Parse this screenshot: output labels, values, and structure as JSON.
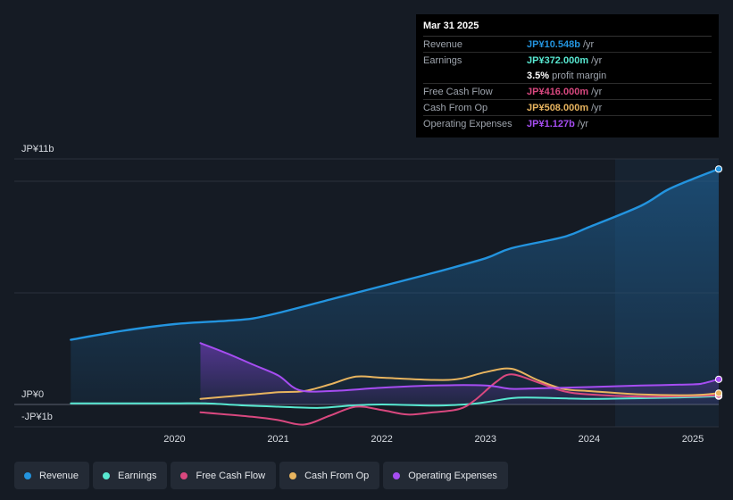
{
  "chart_data": {
    "type": "area",
    "title": "",
    "y_labels": {
      "top": "JP¥11b",
      "zero": "JP¥0",
      "bottom": "-JP¥1b"
    },
    "ylim": [
      -1.0,
      11.0
    ],
    "x_ticks": [
      "2020",
      "2021",
      "2022",
      "2023",
      "2024",
      "2025"
    ],
    "x_tick_values": [
      2020.0,
      2021.0,
      2022.0,
      2023.0,
      2024.0,
      2025.0
    ],
    "xlim": [
      2018.73,
      2025.25
    ],
    "forecast_start": 2024.25,
    "series": [
      {
        "name": "Revenue",
        "color": "#2394df",
        "fill": true,
        "x": [
          2019.0,
          2019.5,
          2020.0,
          2020.5,
          2020.75,
          2021.0,
          2021.5,
          2022.0,
          2022.5,
          2023.0,
          2023.25,
          2023.75,
          2024.0,
          2024.5,
          2024.75,
          2025.0,
          2025.25
        ],
        "values": [
          2.9,
          3.3,
          3.6,
          3.75,
          3.85,
          4.1,
          4.7,
          5.3,
          5.9,
          6.55,
          7.0,
          7.5,
          7.95,
          8.9,
          9.6,
          10.1,
          10.548
        ]
      },
      {
        "name": "Earnings",
        "color": "#58e8d1",
        "fill": false,
        "x": [
          2019.0,
          2019.5,
          2020.0,
          2020.3,
          2020.7,
          2021.0,
          2021.4,
          2021.7,
          2022.0,
          2022.5,
          2022.8,
          2023.0,
          2023.3,
          2023.7,
          2024.0,
          2024.5,
          2025.0,
          2025.25
        ],
        "values": [
          0.05,
          0.05,
          0.05,
          0.05,
          -0.05,
          -0.1,
          -0.15,
          -0.05,
          0.0,
          -0.05,
          0.0,
          0.1,
          0.3,
          0.28,
          0.25,
          0.28,
          0.33,
          0.372
        ]
      },
      {
        "name": "Free Cash Flow",
        "color": "#d9487f",
        "fill": false,
        "x": [
          2020.25,
          2020.75,
          2021.0,
          2021.25,
          2021.5,
          2021.75,
          2022.0,
          2022.25,
          2022.5,
          2022.75,
          2022.9,
          2023.1,
          2023.25,
          2023.5,
          2023.75,
          2024.0,
          2024.5,
          2025.0,
          2025.25
        ],
        "values": [
          -0.35,
          -0.55,
          -0.7,
          -0.9,
          -0.5,
          -0.1,
          -0.25,
          -0.45,
          -0.35,
          -0.2,
          0.2,
          1.0,
          1.35,
          1.0,
          0.6,
          0.45,
          0.35,
          0.38,
          0.416
        ]
      },
      {
        "name": "Cash From Op",
        "color": "#e8b45f",
        "fill": false,
        "x": [
          2020.25,
          2020.75,
          2021.0,
          2021.25,
          2021.5,
          2021.75,
          2022.0,
          2022.5,
          2022.75,
          2023.0,
          2023.25,
          2023.5,
          2023.75,
          2024.0,
          2024.5,
          2025.0,
          2025.25
        ],
        "values": [
          0.25,
          0.45,
          0.55,
          0.6,
          0.9,
          1.25,
          1.2,
          1.1,
          1.15,
          1.45,
          1.6,
          1.1,
          0.7,
          0.6,
          0.45,
          0.42,
          0.508
        ]
      },
      {
        "name": "Operating Expenses",
        "color": "#a64df2",
        "fill": true,
        "x": [
          2020.25,
          2020.5,
          2020.75,
          2021.0,
          2021.2,
          2021.5,
          2022.0,
          2022.5,
          2023.0,
          2023.25,
          2023.5,
          2024.0,
          2024.5,
          2025.0,
          2025.1,
          2025.25
        ],
        "values": [
          2.75,
          2.3,
          1.8,
          1.3,
          0.65,
          0.6,
          0.75,
          0.85,
          0.85,
          0.7,
          0.72,
          0.78,
          0.85,
          0.9,
          0.95,
          1.127
        ]
      }
    ],
    "tooltip": {
      "date": "Mar 31 2025",
      "rows": [
        {
          "label": "Revenue",
          "value": "JP¥10.548b",
          "unit": "/yr",
          "color": "#2394df"
        },
        {
          "label": "Earnings",
          "value": "JP¥372.000m",
          "unit": "/yr",
          "color": "#58e8d1"
        },
        {
          "label": "",
          "value": "3.5%",
          "unit": "profit margin",
          "color": "#ffffff"
        },
        {
          "label": "Free Cash Flow",
          "value": "JP¥416.000m",
          "unit": "/yr",
          "color": "#d9487f"
        },
        {
          "label": "Cash From Op",
          "value": "JP¥508.000m",
          "unit": "/yr",
          "color": "#e8b45f"
        },
        {
          "label": "Operating Expenses",
          "value": "JP¥1.127b",
          "unit": "/yr",
          "color": "#a64df2"
        }
      ]
    },
    "legend": [
      {
        "label": "Revenue",
        "color": "#2394df"
      },
      {
        "label": "Earnings",
        "color": "#58e8d1"
      },
      {
        "label": "Free Cash Flow",
        "color": "#d9487f"
      },
      {
        "label": "Cash From Op",
        "color": "#e8b45f"
      },
      {
        "label": "Operating Expenses",
        "color": "#a64df2"
      }
    ]
  }
}
